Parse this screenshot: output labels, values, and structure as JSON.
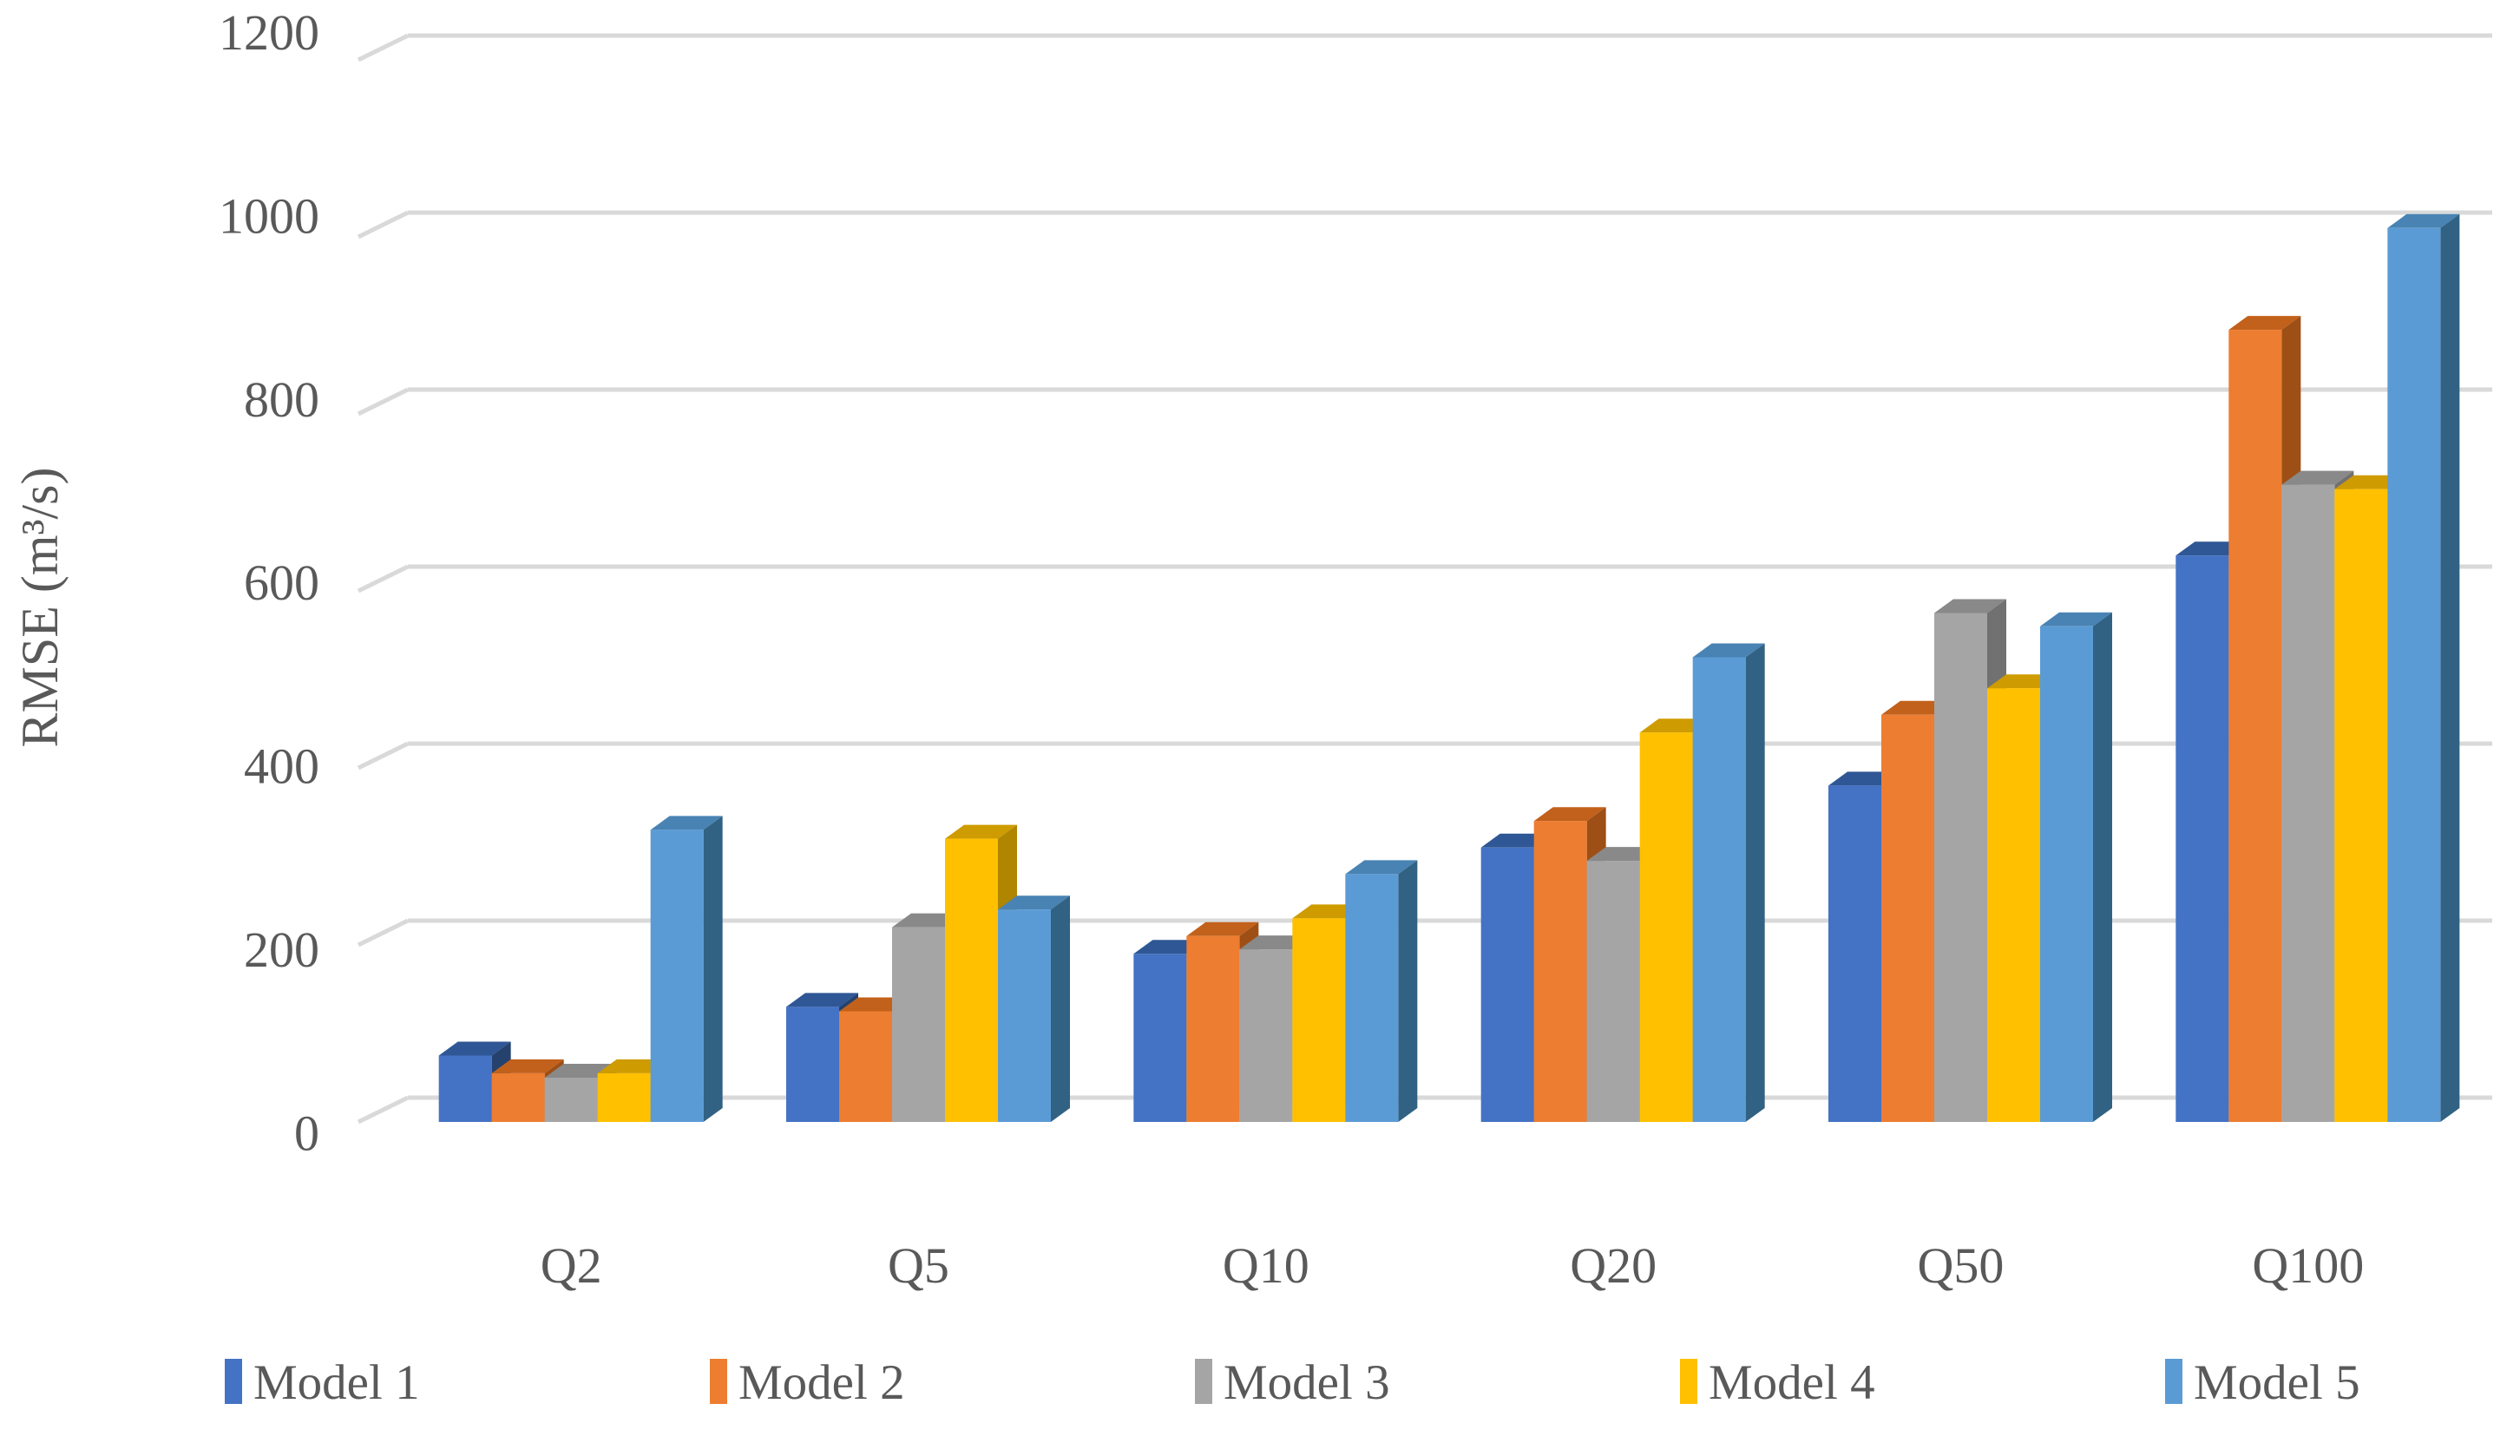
{
  "chart_data": {
    "type": "bar",
    "projection": "3d",
    "title": "",
    "ylabel": "RMSE (m³/s)",
    "xlabel": "",
    "categories": [
      "Q2",
      "Q5",
      "Q10",
      "Q20",
      "Q50",
      "Q100"
    ],
    "series": [
      {
        "name": "Model 1",
        "color": "#4472C4",
        "color_top": "#2F5795",
        "color_side": "#24426D",
        "values": [
          75,
          130,
          190,
          310,
          380,
          640
        ]
      },
      {
        "name": "Model 2",
        "color": "#ED7D31",
        "color_top": "#C2611B",
        "color_side": "#9E4F15",
        "values": [
          55,
          125,
          210,
          340,
          460,
          895
        ]
      },
      {
        "name": "Model 3",
        "color": "#A5A5A5",
        "color_top": "#898989",
        "color_side": "#717171",
        "values": [
          50,
          220,
          195,
          295,
          575,
          720
        ]
      },
      {
        "name": "Model 4",
        "color": "#FFC000",
        "color_top": "#CE9B00",
        "color_side": "#B08500",
        "values": [
          55,
          320,
          230,
          440,
          490,
          715
        ]
      },
      {
        "name": "Model 5",
        "color": "#5B9BD5",
        "color_top": "#4983B4",
        "color_side": "#316283",
        "values": [
          330,
          240,
          280,
          525,
          560,
          1010
        ]
      }
    ],
    "ylim": [
      0,
      1200
    ],
    "ytick_step": 200,
    "yticks": [
      0,
      200,
      400,
      600,
      800,
      1000,
      1200
    ],
    "grid": true,
    "legend_position": "bottom",
    "styles": {
      "gridline_color": "#D9D9D9",
      "axis_text_color": "#595959",
      "background_color": "#FFFFFF"
    }
  }
}
